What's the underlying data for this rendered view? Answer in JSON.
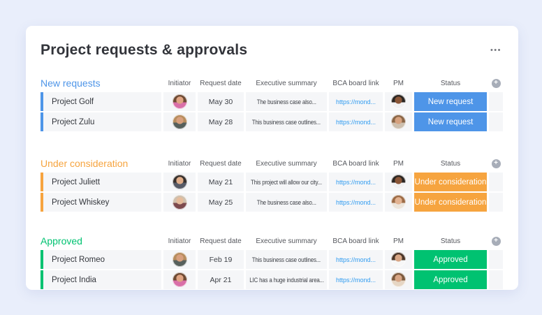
{
  "page": {
    "title": "Project requests & approvals"
  },
  "icons": {
    "board_menu_glyph": "•••",
    "add_column_glyph": "+"
  },
  "colors": {
    "page_bg": "#E9EEFB",
    "card_bg": "#FFFFFF",
    "cell_bg": "#F5F6F8",
    "link": "#2E9BF0",
    "blue": "#4E95E8",
    "orange": "#F6A43F",
    "green": "#00C271"
  },
  "board": {
    "columns": [
      "Initiator",
      "Request date",
      "Executive summary",
      "BCA board link",
      "PM",
      "Status"
    ],
    "groups": [
      {
        "title": "New requests",
        "color": "#4E95E8",
        "rows": [
          {
            "name": "Project Golf",
            "request_date": "May 30",
            "executive_summary": "The business case also...",
            "bca_board_link": "https://mond...",
            "status": "New request",
            "status_color": "#4E95E8",
            "initiator_avatar": {
              "hair": "#6E4A33",
              "skin": "#DFA483",
              "shirt": "#D96FA8"
            },
            "pm_avatar": {
              "hair": "#2A2522",
              "skin": "#8A5638",
              "shirt": "#F1F1F3"
            }
          },
          {
            "name": "Project Zulu",
            "request_date": "May 28",
            "executive_summary": "This business case outlines...",
            "bca_board_link": "https://mond...",
            "status": "New request",
            "status_color": "#4E95E8",
            "initiator_avatar": {
              "hair": "#B78D5E",
              "skin": "#D8A07E",
              "shirt": "#57605C"
            },
            "pm_avatar": {
              "hair": "#8A6647",
              "skin": "#D6A17E",
              "shirt": "#CDBFAE"
            }
          }
        ]
      },
      {
        "title": "Under consideration",
        "color": "#F6A43F",
        "rows": [
          {
            "name": "Project Juliett",
            "request_date": "May 21",
            "executive_summary": "This project will allow our city...",
            "bca_board_link": "https://mond...",
            "status": "Under consideration",
            "status_color": "#F6A43F",
            "initiator_avatar": {
              "hair": "#37302C",
              "skin": "#E0AD8A",
              "shirt": "#565A66"
            },
            "pm_avatar": {
              "hair": "#2A2522",
              "skin": "#8A5638",
              "shirt": "#F1F1F3"
            }
          },
          {
            "name": "Project Whiskey",
            "request_date": "May 25",
            "executive_summary": "The business case also...",
            "bca_board_link": "https://mond...",
            "status": "Under consideration",
            "status_color": "#F6A43F",
            "initiator_avatar": {
              "hair": "#CFC0AE",
              "skin": "#E6BC9C",
              "shirt": "#7D4A4E"
            },
            "pm_avatar": {
              "hair": "#9C6B46",
              "skin": "#E2B291",
              "shirt": "#ECE4DA"
            }
          }
        ]
      },
      {
        "title": "Approved",
        "color": "#00C271",
        "rows": [
          {
            "name": "Project Romeo",
            "request_date": "Feb 19",
            "executive_summary": "This business case outlines...",
            "bca_board_link": "https://mond...",
            "status": "Approved",
            "status_color": "#00C271",
            "initiator_avatar": {
              "hair": "#B78D5E",
              "skin": "#D8A07E",
              "shirt": "#57605C"
            },
            "pm_avatar": {
              "hair": "#4A3528",
              "skin": "#D8A686",
              "shirt": "#F7F7F7"
            }
          },
          {
            "name": "Project India",
            "request_date": "Apr 21",
            "executive_summary": "LIC has a huge industrial area...",
            "bca_board_link": "https://mond...",
            "status": "Approved",
            "status_color": "#00C271",
            "initiator_avatar": {
              "hair": "#6E4A33",
              "skin": "#DFA483",
              "shirt": "#D96FA8"
            },
            "pm_avatar": {
              "hair": "#7C5A3E",
              "skin": "#D8A686",
              "shirt": "#E6D6C4"
            }
          }
        ]
      }
    ]
  }
}
